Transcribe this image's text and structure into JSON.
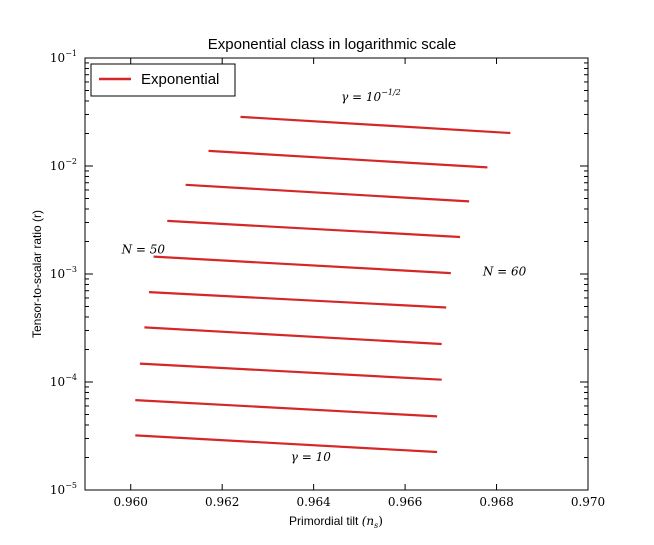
{
  "chart_data": {
    "type": "line",
    "title": "Exponential class in logarithmic scale",
    "xlabel": "Primordial tilt",
    "xlabel_math": "(n",
    "xlabel_math_sub": "s",
    "xlabel_math_close": ")",
    "ylabel": "Tensor-to-scalar ratio (r)",
    "xlim": [
      0.959,
      0.97
    ],
    "ylim": [
      1e-05,
      0.1
    ],
    "yscale": "log",
    "grid": false,
    "legend_position": "top-left",
    "x_ticks": [
      "0.960",
      "0.962",
      "0.964",
      "0.966",
      "0.968",
      "0.970"
    ],
    "x_tick_values": [
      0.96,
      0.962,
      0.964,
      0.966,
      0.968,
      0.97
    ],
    "y_ticks": [
      {
        "value": 0.1,
        "base": "10",
        "exp": "−1"
      },
      {
        "value": 0.01,
        "base": "10",
        "exp": "−2"
      },
      {
        "value": 0.001,
        "base": "10",
        "exp": "−3"
      },
      {
        "value": 0.0001,
        "base": "10",
        "exp": "−4"
      },
      {
        "value": 1e-05,
        "base": "10",
        "exp": "−5"
      }
    ],
    "legend": [
      {
        "label": "Exponential",
        "color": "#d62728"
      }
    ],
    "line_color": "#d62728",
    "series": [
      {
        "x": [
          0.9624,
          0.9683
        ],
        "y": [
          0.0285,
          0.0202
        ]
      },
      {
        "x": [
          0.9617,
          0.9678
        ],
        "y": [
          0.0138,
          0.0097
        ]
      },
      {
        "x": [
          0.9612,
          0.9674
        ],
        "y": [
          0.0067,
          0.0047
        ]
      },
      {
        "x": [
          0.9608,
          0.9672
        ],
        "y": [
          0.0031,
          0.0022
        ]
      },
      {
        "x": [
          0.9605,
          0.967
        ],
        "y": [
          0.00145,
          0.00102
        ]
      },
      {
        "x": [
          0.9604,
          0.9669
        ],
        "y": [
          0.00068,
          0.00049
        ]
      },
      {
        "x": [
          0.9603,
          0.9668
        ],
        "y": [
          0.00032,
          0.000225
        ]
      },
      {
        "x": [
          0.9602,
          0.9668
        ],
        "y": [
          0.000148,
          0.000105
        ]
      },
      {
        "x": [
          0.9601,
          0.9667
        ],
        "y": [
          6.8e-05,
          4.8e-05
        ]
      },
      {
        "x": [
          0.9601,
          0.9667
        ],
        "y": [
          3.2e-05,
          2.25e-05
        ]
      }
    ],
    "annotations": [
      {
        "id": "gamma-top",
        "base": "γ = 10",
        "exp": "−1/2",
        "x": 0.9646,
        "y": 0.04
      },
      {
        "id": "gamma-bottom",
        "base": "γ = 10",
        "exp": "",
        "x": 0.9635,
        "y": 1.85e-05
      },
      {
        "id": "n50",
        "base": "N = 50",
        "exp": "",
        "x": 0.9598,
        "y": 0.00155
      },
      {
        "id": "n60",
        "base": "N = 60",
        "exp": "",
        "x": 0.9677,
        "y": 0.00097
      }
    ]
  }
}
